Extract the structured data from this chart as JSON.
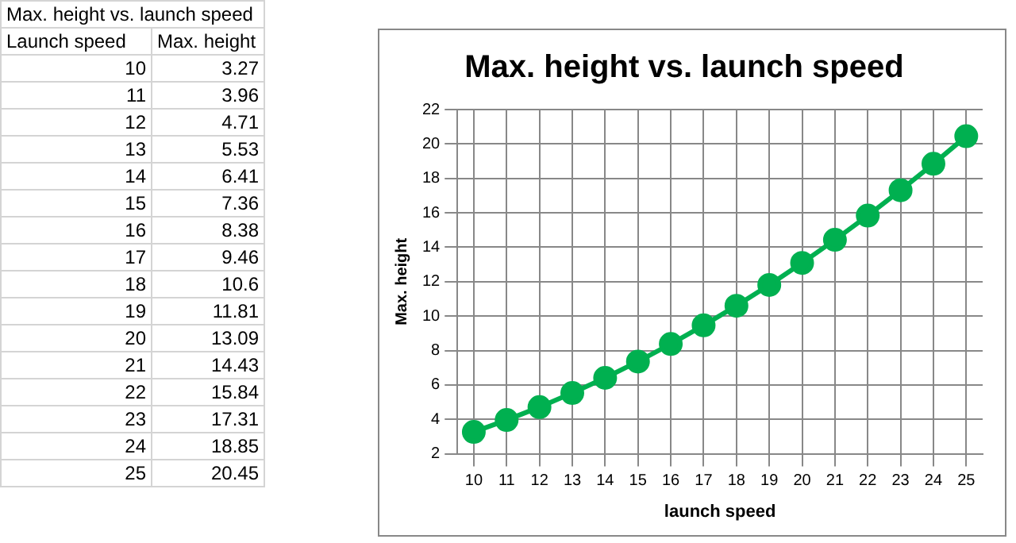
{
  "chart_data": [
    {
      "type": "heatmap",
      "title": "Max. height vs. launch speed",
      "ylabel": "Launch speed",
      "categories": [
        "Max. height"
      ],
      "data_labels": true,
      "y_categories": [
        "10",
        "11",
        "12",
        "13",
        "14",
        "15",
        "16",
        "17",
        "18",
        "19",
        "20",
        "21",
        "22",
        "23",
        "24",
        "25"
      ],
      "cells": [
        [
          3.27
        ],
        [
          3.96
        ],
        [
          4.71
        ],
        [
          5.53
        ],
        [
          6.41
        ],
        [
          7.36
        ],
        [
          8.38
        ],
        [
          9.46
        ],
        [
          10.6
        ],
        [
          11.81
        ],
        [
          13.09
        ],
        [
          14.43
        ],
        [
          15.84
        ],
        [
          17.31
        ],
        [
          18.85
        ],
        [
          20.45
        ]
      ]
    },
    {
      "type": "line",
      "title": "Max. height vs. launch speed",
      "xlabel": "launch speed",
      "ylabel": "Max. height",
      "x": [
        10,
        11,
        12,
        13,
        14,
        15,
        16,
        17,
        18,
        19,
        20,
        21,
        22,
        23,
        24,
        25
      ],
      "series": [
        {
          "color": "#00b050",
          "values": [
            3.27,
            3.96,
            4.71,
            5.53,
            6.41,
            7.36,
            8.38,
            9.46,
            10.6,
            11.81,
            13.09,
            14.43,
            15.84,
            17.31,
            18.85,
            20.45
          ]
        }
      ],
      "xlim": [
        9.5,
        25.5
      ],
      "xticks": [
        10,
        11,
        12,
        13,
        14,
        15,
        16,
        17,
        18,
        19,
        20,
        21,
        22,
        23,
        24,
        25
      ],
      "ylim": [
        2,
        22
      ],
      "yticks": [
        2,
        4,
        6,
        8,
        10,
        12,
        14,
        16,
        18,
        20,
        22
      ],
      "grid": true,
      "legend": false,
      "marker": "circle",
      "line_style": "solid"
    }
  ]
}
